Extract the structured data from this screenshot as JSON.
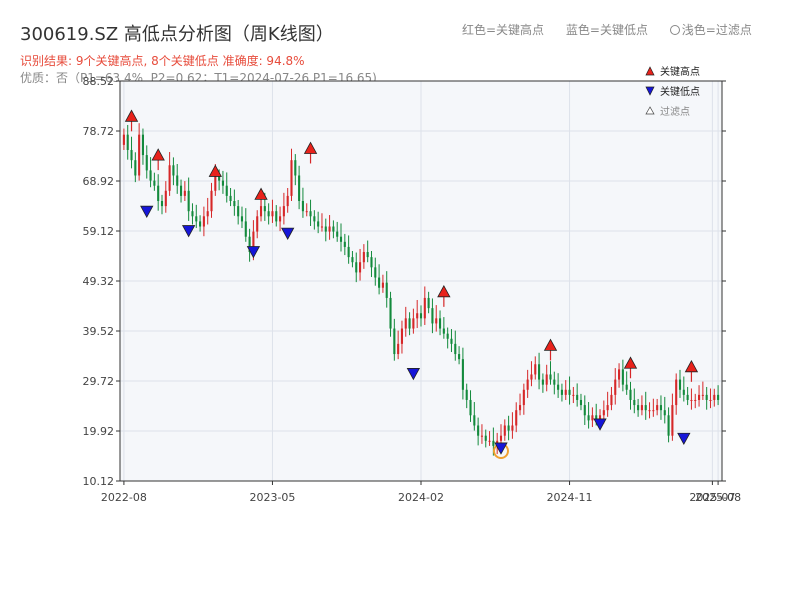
{
  "header": {
    "title": "300619.SZ 高低点分析图（周K线图）",
    "legend_red": "红色=关键高点",
    "legend_blue": "蓝色=关键低点",
    "legend_light": "浅色=过滤点",
    "result_line": "识别结果: 9个关键高点, 8个关键低点  准确度: 94.8%",
    "info_line": "优质：否（P1=63.4%, P2=0.62；T1=2024-07-26 P1=16.65)"
  },
  "legend": {
    "high": "关键高点",
    "low": "关键低点",
    "filtered": "过滤点"
  },
  "colors": {
    "up": "#d62728",
    "down": "#138a3c",
    "high_marker": "#e8221b",
    "low_marker": "#1616d8",
    "highlight_ring": "#f0a030",
    "plot_bg": "#f5f7fa",
    "grid": "#dde2ea"
  },
  "chart_data": {
    "type": "candlestick",
    "ylim": [
      10.12,
      88.52
    ],
    "yticks": [
      "10.12",
      "19.92",
      "29.72",
      "39.52",
      "49.32",
      "59.12",
      "68.92",
      "78.72",
      "88.52"
    ],
    "xticks": [
      {
        "label": "2022-08",
        "week": 0
      },
      {
        "label": "2023-05",
        "week": 39
      },
      {
        "label": "2024-02",
        "week": 78
      },
      {
        "label": "2024-11",
        "week": 117
      },
      {
        "label": "2025-07",
        "week": 154.5
      },
      {
        "label": "2025-08",
        "week": 156
      }
    ],
    "weeks": 157,
    "closes": [
      78,
      75,
      73,
      70,
      78,
      74,
      71,
      69,
      68,
      65,
      64,
      67,
      72,
      70,
      68,
      66,
      67,
      63,
      62,
      61,
      60,
      62,
      63,
      67,
      70,
      69,
      68,
      66,
      65,
      64,
      62,
      61,
      58,
      55,
      59,
      62,
      64,
      63,
      62,
      63,
      61,
      62,
      64,
      66,
      73,
      70,
      65,
      63,
      63,
      62,
      61,
      60,
      60,
      59,
      60,
      59,
      58,
      57,
      56,
      54,
      53,
      51,
      53,
      55,
      54,
      52,
      50,
      48,
      49,
      46,
      40,
      35,
      37,
      40,
      42,
      40,
      42,
      43,
      42,
      46,
      44,
      41,
      42,
      40,
      39,
      38,
      37,
      35,
      34,
      28,
      26,
      23,
      21,
      19,
      19,
      18,
      18,
      17,
      18,
      19,
      21,
      20,
      21,
      24,
      25,
      28,
      30,
      31,
      33,
      30,
      29,
      31,
      30,
      29,
      28,
      27,
      28,
      27,
      27,
      26,
      25,
      23,
      22,
      23,
      22,
      23,
      24,
      25,
      27,
      30,
      32,
      29,
      28,
      26,
      25,
      24,
      25,
      24,
      24,
      24,
      25,
      24,
      23,
      19,
      25,
      30,
      28,
      27,
      26,
      26,
      26,
      27,
      27,
      26,
      26,
      27,
      26
    ],
    "key_highs": [
      {
        "week": 2,
        "value": 81.4
      },
      {
        "week": 9,
        "value": 73.8
      },
      {
        "week": 24,
        "value": 70.6
      },
      {
        "week": 36,
        "value": 66.1
      },
      {
        "week": 49,
        "value": 75.1
      },
      {
        "week": 84,
        "value": 47.0
      },
      {
        "week": 112,
        "value": 36.5
      },
      {
        "week": 133,
        "value": 33.0
      },
      {
        "week": 149,
        "value": 32.3
      }
    ],
    "key_lows": [
      {
        "week": 6,
        "value": 63.2
      },
      {
        "week": 17,
        "value": 59.4
      },
      {
        "week": 34,
        "value": 55.3
      },
      {
        "week": 43,
        "value": 58.9
      },
      {
        "week": 76,
        "value": 31.4
      },
      {
        "week": 99,
        "value": 16.8
      },
      {
        "week": 125,
        "value": 21.5
      },
      {
        "week": 147,
        "value": 18.7
      }
    ],
    "highlighted_low_week": 99
  }
}
